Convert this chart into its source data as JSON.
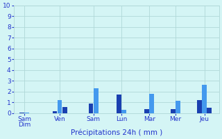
{
  "xlabel": "Précipitations 24h ( mm )",
  "background_color": "#d4f5f5",
  "ylim": [
    0,
    10
  ],
  "yticks": [
    0,
    1,
    2,
    3,
    4,
    5,
    6,
    7,
    8,
    9,
    10
  ],
  "grid_color": "#b0d8d8",
  "xlabel_color": "#2233cc",
  "tick_label_color": "#2233cc",
  "bar_width": 0.28,
  "bars": [
    {
      "x": 1.0,
      "height": 0.05,
      "color": "#1a40b0"
    },
    {
      "x": 1.3,
      "height": 0.05,
      "color": "#4499ee"
    },
    {
      "x": 3.0,
      "height": 0.18,
      "color": "#1a40b0"
    },
    {
      "x": 3.3,
      "height": 1.2,
      "color": "#4499ee"
    },
    {
      "x": 3.6,
      "height": 0.55,
      "color": "#1a40b0"
    },
    {
      "x": 5.2,
      "height": 0.9,
      "color": "#1a40b0"
    },
    {
      "x": 5.5,
      "height": 2.3,
      "color": "#4499ee"
    },
    {
      "x": 6.9,
      "height": 1.7,
      "color": "#1a40b0"
    },
    {
      "x": 7.2,
      "height": 0.3,
      "color": "#4499ee"
    },
    {
      "x": 8.6,
      "height": 0.35,
      "color": "#1a40b0"
    },
    {
      "x": 8.9,
      "height": 1.8,
      "color": "#4499ee"
    },
    {
      "x": 10.2,
      "height": 0.35,
      "color": "#1a40b0"
    },
    {
      "x": 10.5,
      "height": 1.15,
      "color": "#4499ee"
    },
    {
      "x": 11.8,
      "height": 1.2,
      "color": "#1a40b0"
    },
    {
      "x": 12.1,
      "height": 2.6,
      "color": "#4499ee"
    },
    {
      "x": 12.4,
      "height": 0.5,
      "color": "#1a40b0"
    }
  ],
  "tick_positions": [
    1.15,
    3.3,
    5.35,
    7.05,
    8.75,
    10.35,
    12.1
  ],
  "tick_labels": [
    "Sam\nDim",
    "Ven",
    "Sam",
    "Lun",
    "Mar",
    "Mer",
    "Jeu"
  ],
  "xlim": [
    0.5,
    13.0
  ]
}
